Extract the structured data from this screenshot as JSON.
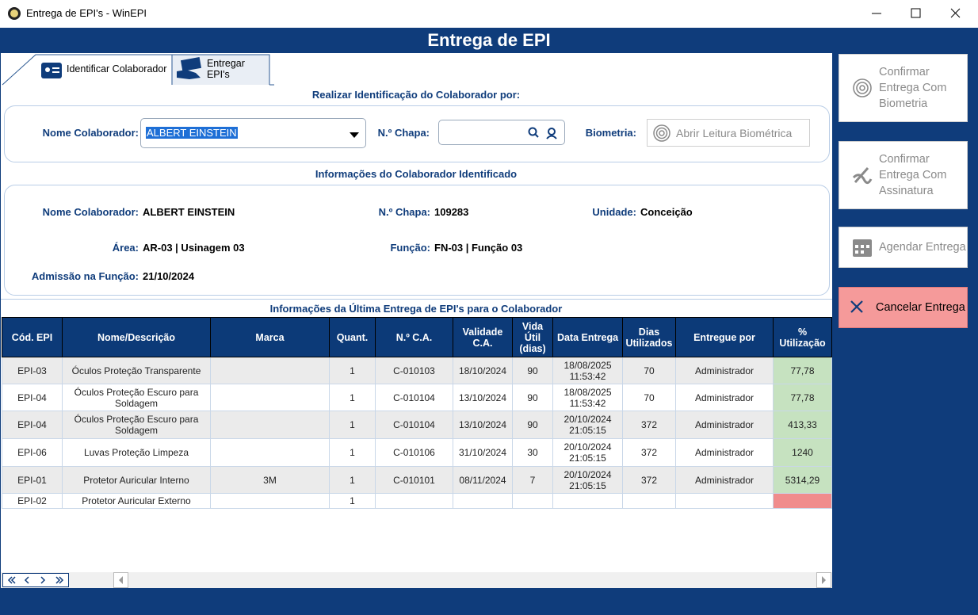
{
  "window": {
    "title": "Entrega de EPI's - WinEPI"
  },
  "header": {
    "title": "Entrega de EPI"
  },
  "tabs": [
    "Identificar Colaborador",
    "Entregar EPI's"
  ],
  "identification": {
    "heading": "Realizar Identificação do Colaborador por:",
    "name_label": "Nome Colaborador:",
    "name_value": "ALBERT EINSTEIN",
    "chapa_label": "N.º Chapa:",
    "biometria_label": "Biometria:",
    "biometria_button": "Abrir Leitura Biométrica"
  },
  "info": {
    "heading": "Informações do Colaborador Identificado",
    "fields": [
      {
        "label": "Nome Colaborador:",
        "value": "ALBERT EINSTEIN"
      },
      {
        "label": "N.º Chapa:",
        "value": "109283"
      },
      {
        "label": "Unidade:",
        "value": "Conceição"
      },
      {
        "label": "Área:",
        "value": "AR-03 | Usinagem 03"
      },
      {
        "label": "Função:",
        "value": "FN-03 | Função 03"
      },
      {
        "label": "Admissão na Função:",
        "value": "21/10/2024"
      }
    ]
  },
  "table": {
    "heading": "Informações da Última Entrega de EPI's para o Colaborador",
    "columns": [
      "Cód. EPI",
      "Nome/Descrição",
      "Marca",
      "Quant.",
      "N.º C.A.",
      "Validade C.A.",
      "Vida Útil (dias)",
      "Data Entrega",
      "Dias Utilizados",
      "Entregue por",
      "% Utilização"
    ],
    "rows": [
      [
        "EPI-03",
        "Óculos Proteção Transparente",
        null,
        "1",
        "C-010103",
        "18/10/2024",
        "90",
        "18/08/2025 11:53:42",
        "70",
        "Administrador",
        "77,78"
      ],
      [
        "EPI-04",
        "Óculos Proteção Escuro para Soldagem",
        null,
        "1",
        "C-010104",
        "13/10/2024",
        "90",
        "18/08/2025 11:53:42",
        "70",
        "Administrador",
        "77,78"
      ],
      [
        "EPI-04",
        "Óculos Proteção Escuro para Soldagem",
        null,
        "1",
        "C-010104",
        "13/10/2024",
        "90",
        "20/10/2024 21:05:15",
        "372",
        "Administrador",
        "413,33"
      ],
      [
        "EPI-06",
        "Luvas Proteção Limpeza",
        null,
        "1",
        "C-010106",
        "31/10/2024",
        "30",
        "20/10/2024 21:05:15",
        "372",
        "Administrador",
        "1240"
      ],
      [
        "EPI-01",
        "Protetor Auricular Interno",
        "3M",
        "1",
        "C-010101",
        "08/11/2024",
        "7",
        "20/10/2024 21:05:15",
        "372",
        "Administrador",
        "5314,29"
      ],
      [
        "EPI-02",
        "Protetor Auricular Externo",
        null,
        "1",
        null,
        null,
        null,
        null,
        null,
        null,
        null
      ]
    ]
  },
  "actions": [
    "Confirmar Entrega Com Biometria",
    "Confirmar Entrega Com Assinatura",
    "Agendar Entrega",
    "Cancelar Entrega"
  ]
}
